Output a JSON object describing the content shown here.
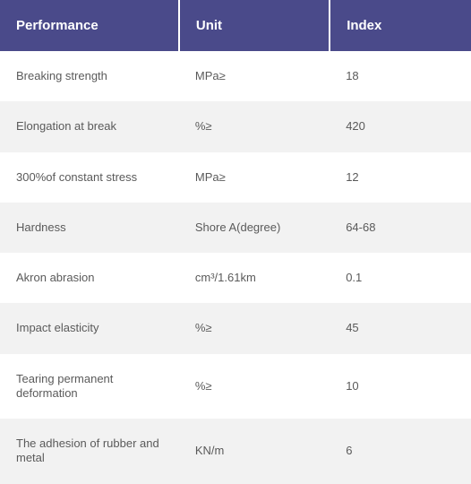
{
  "table": {
    "header_bg": "#4a4a8a",
    "header_text_color": "#ffffff",
    "row_bg_even": "#ffffff",
    "row_bg_odd": "#f2f2f2",
    "cell_text_color": "#5a5a5a",
    "header_fontsize": 15,
    "cell_fontsize": 13,
    "columns": [
      {
        "label": "Performance",
        "width_pct": 38
      },
      {
        "label": "Unit",
        "width_pct": 32
      },
      {
        "label": "Index",
        "width_pct": 30
      }
    ],
    "rows": [
      {
        "performance": "Breaking strength",
        "unit": "MPa≥",
        "index": "18"
      },
      {
        "performance": "Elongation at break",
        "unit": "%≥",
        "index": "420"
      },
      {
        "performance": "300%of constant stress",
        "unit": "MPa≥",
        "index": "12"
      },
      {
        "performance": "Hardness",
        "unit": "Shore A(degree)",
        "index": "64-68"
      },
      {
        "performance": "Akron abrasion",
        "unit": "cm³/1.61km",
        "index": "0.1"
      },
      {
        "performance": "Impact elasticity",
        "unit": "%≥",
        "index": "45"
      },
      {
        "performance": "Tearing permanent deformation",
        "unit": "%≥",
        "index": "10"
      },
      {
        "performance": "The adhesion of rubber and metal",
        "unit": "KN/m",
        "index": "6"
      }
    ]
  }
}
